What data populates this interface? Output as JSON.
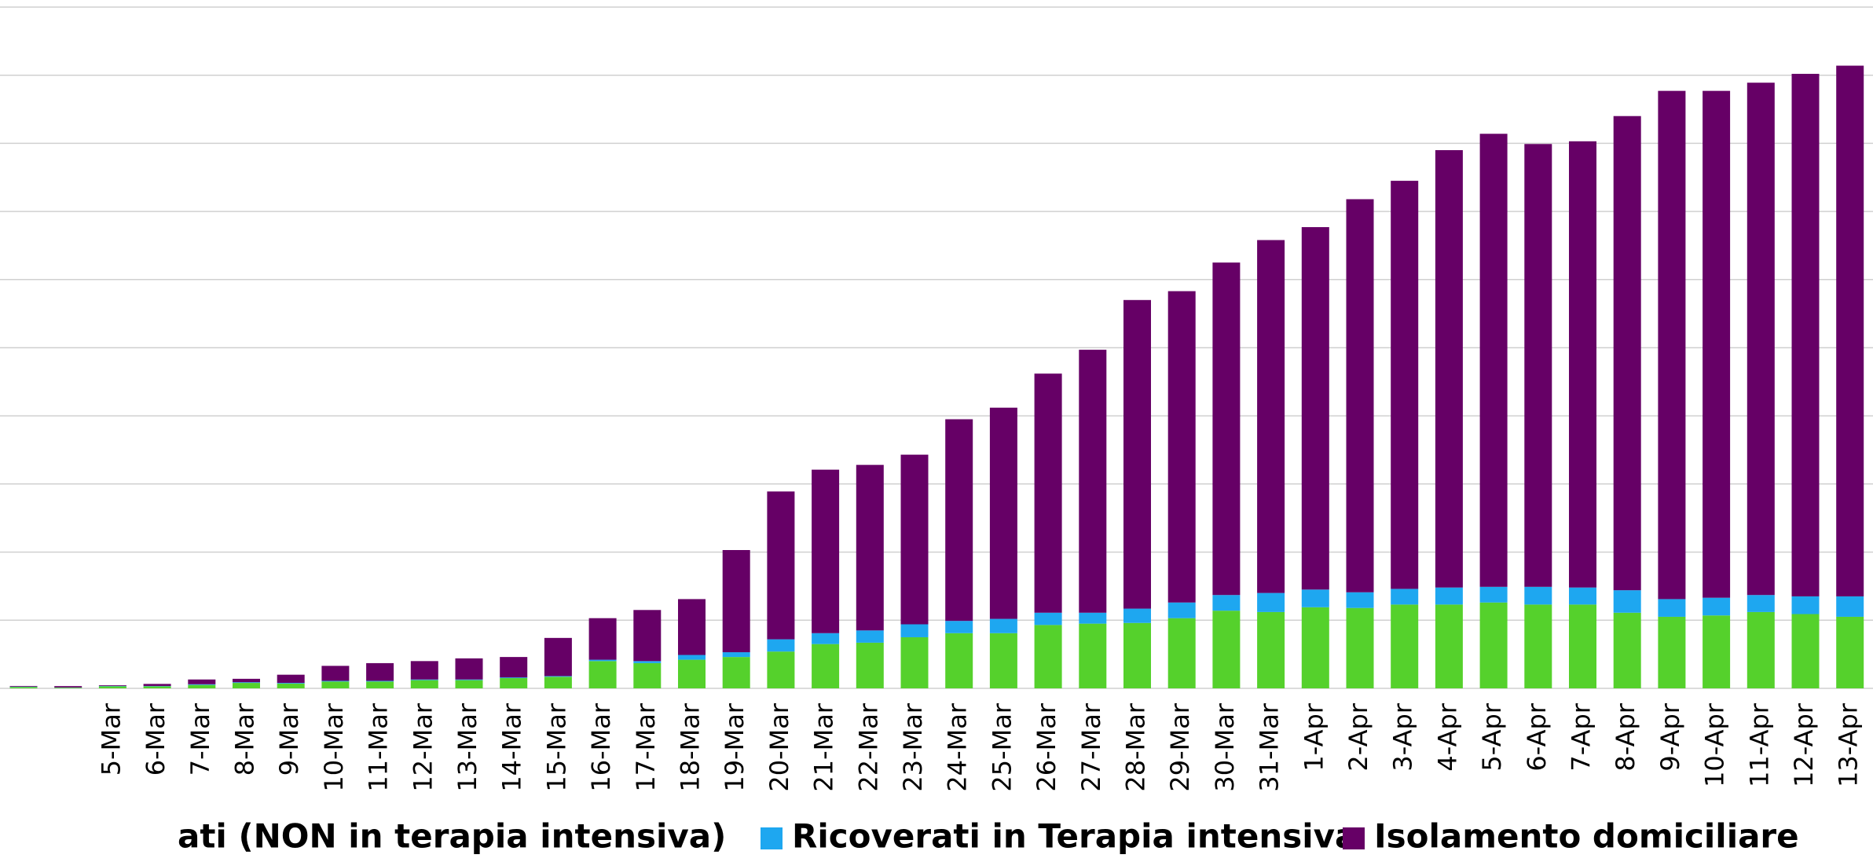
{
  "chart_data": {
    "type": "stacked_bar",
    "categories": [
      null,
      null,
      "5-Mar",
      "6-Mar",
      "7-Mar",
      "8-Mar",
      "9-Mar",
      "10-Mar",
      "11-Mar",
      "12-Mar",
      "13-Mar",
      "14-Mar",
      "15-Mar",
      "16-Mar",
      "17-Mar",
      "18-Mar",
      "19-Mar",
      "20-Mar",
      "21-Mar",
      "22-Mar",
      "23-Mar",
      "24-Mar",
      "25-Mar",
      "26-Mar",
      "27-Mar",
      "28-Mar",
      "29-Mar",
      "30-Mar",
      "31-Mar",
      "1-Apr",
      "2-Apr",
      "3-Apr",
      "4-Apr",
      "5-Apr",
      "6-Apr",
      "7-Apr",
      "8-Apr",
      "9-Apr",
      "10-Apr",
      "11-Apr",
      "12-Apr",
      "13-Apr"
    ],
    "series": [
      {
        "name": "ati (NON in terapia intensiva)",
        "color": "#55d12c",
        "values": [
          200,
          100,
          300,
          300,
          500,
          800,
          700,
          1000,
          1000,
          1200,
          1200,
          1500,
          1700,
          4000,
          3700,
          4200,
          4600,
          5400,
          6500,
          6700,
          7500,
          8100,
          8100,
          9300,
          9500,
          9600,
          10300,
          11400,
          11200,
          11900,
          11800,
          12300,
          12300,
          12600,
          12300,
          12300,
          11100,
          10500,
          10700,
          11200,
          10900,
          10500
        ]
      },
      {
        "name": "Ricoverati in Terapia intensiva",
        "color": "#1ea7f0",
        "values": [
          50,
          30,
          50,
          50,
          100,
          100,
          100,
          100,
          100,
          100,
          100,
          100,
          100,
          200,
          300,
          700,
          700,
          1800,
          1600,
          1800,
          1900,
          1800,
          2100,
          1800,
          1600,
          2100,
          2300,
          2300,
          2800,
          2600,
          2300,
          2300,
          2500,
          2300,
          2600,
          2500,
          3300,
          2600,
          2600,
          2500,
          2600,
          3000
        ]
      },
      {
        "name": "Isolamento domiciliare",
        "color": "#660066",
        "values": [
          100,
          200,
          100,
          300,
          700,
          500,
          1200,
          2200,
          2600,
          2700,
          3100,
          3000,
          5600,
          6100,
          7500,
          8200,
          15000,
          21700,
          24000,
          24300,
          24900,
          29600,
          31000,
          35100,
          38600,
          45300,
          45700,
          48800,
          51800,
          53200,
          57700,
          59900,
          64200,
          66500,
          65000,
          65500,
          69600,
          74600,
          74400,
          75200,
          76700,
          77900
        ]
      }
    ],
    "ylim": [
      0,
      100000
    ],
    "yticks": [
      0,
      10000,
      20000,
      30000,
      40000,
      50000,
      60000,
      70000,
      80000,
      90000,
      100000
    ],
    "grid": true
  }
}
